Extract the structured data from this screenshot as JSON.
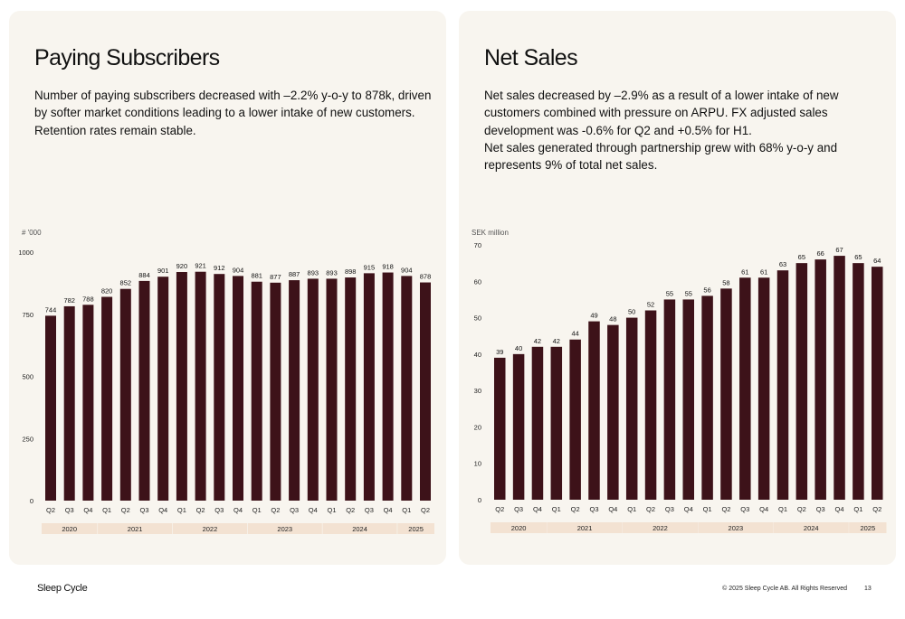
{
  "colors": {
    "bar": "#3d1219",
    "card_bg": "#f8f5ef",
    "year_band": "#f3e2d2",
    "text": "#111111"
  },
  "panels": [
    {
      "title": "Paying Subscribers",
      "paragraphs": [
        "Number of paying subscribers decreased with –2.2% y-o-y to 878k, driven by softer market conditions leading to a lower intake of new customers. Retention rates remain stable."
      ]
    },
    {
      "title": "Net Sales",
      "paragraphs": [
        "Net sales decreased by –2.9% as a result of a lower intake of new customers combined with pressure on ARPU. FX adjusted sales development was -0.6% for Q2 and +0.5% for H1.",
        "Net sales generated through partnership grew with 68% y-o-y and represents 9% of total net sales."
      ]
    }
  ],
  "chart_data": [
    {
      "type": "bar",
      "unit_label": "# '000",
      "title": "",
      "xlabel": "",
      "ylabel": "# '000",
      "ylim": [
        0,
        1000
      ],
      "yticks": [
        0,
        250,
        500,
        750,
        1000
      ],
      "yticks_labels": [
        "0",
        "250",
        "500",
        "750",
        "1000"
      ],
      "grid": false,
      "categories": [
        "Q2",
        "Q3",
        "Q4",
        "Q1",
        "Q2",
        "Q3",
        "Q4",
        "Q1",
        "Q2",
        "Q3",
        "Q4",
        "Q1",
        "Q2",
        "Q3",
        "Q4",
        "Q1",
        "Q2",
        "Q3",
        "Q4",
        "Q1",
        "Q2"
      ],
      "values": [
        744,
        782,
        788,
        820,
        852,
        884,
        901,
        920,
        921,
        912,
        904,
        881,
        877,
        887,
        893,
        893,
        898,
        915,
        918,
        904,
        878
      ],
      "data_labels": [
        "744",
        "782",
        "788",
        "820",
        "852",
        "884",
        "901",
        "920",
        "921",
        "912",
        "904",
        "881",
        "877",
        "887",
        "893",
        "893",
        "898",
        "915",
        "918",
        "904",
        "878"
      ],
      "years": [
        {
          "label": "2020",
          "count": 3
        },
        {
          "label": "2021",
          "count": 4
        },
        {
          "label": "2022",
          "count": 4
        },
        {
          "label": "2023",
          "count": 4
        },
        {
          "label": "2024",
          "count": 4
        },
        {
          "label": "2025",
          "count": 2
        }
      ]
    },
    {
      "type": "bar",
      "unit_label": "SEK million",
      "title": "",
      "xlabel": "",
      "ylabel": "SEK million",
      "ylim": [
        0,
        70
      ],
      "yticks": [
        0,
        10,
        20,
        30,
        40,
        50,
        60,
        70
      ],
      "yticks_labels": [
        "0",
        "10",
        "20",
        "30",
        "40",
        "50",
        "60",
        "70"
      ],
      "grid": false,
      "categories": [
        "Q2",
        "Q3",
        "Q4",
        "Q1",
        "Q2",
        "Q3",
        "Q4",
        "Q1",
        "Q2",
        "Q3",
        "Q4",
        "Q1",
        "Q2",
        "Q3",
        "Q4",
        "Q1",
        "Q2",
        "Q3",
        "Q4",
        "Q1",
        "Q2"
      ],
      "values": [
        39,
        40,
        42,
        42,
        44,
        49,
        48,
        50,
        52,
        55,
        55,
        56,
        58,
        61,
        61,
        63,
        65,
        66,
        67,
        65,
        64
      ],
      "data_labels": [
        "39",
        "40",
        "42",
        "42",
        "44",
        "49",
        "48",
        "50",
        "52",
        "55",
        "55",
        "56",
        "58",
        "61",
        "61",
        "63",
        "65",
        "66",
        "67",
        "65",
        "64"
      ],
      "years": [
        {
          "label": "2020",
          "count": 3
        },
        {
          "label": "2021",
          "count": 4
        },
        {
          "label": "2022",
          "count": 4
        },
        {
          "label": "2023",
          "count": 4
        },
        {
          "label": "2024",
          "count": 4
        },
        {
          "label": "2025",
          "count": 2
        }
      ]
    }
  ],
  "footer": {
    "brand": "Sleep Cycle",
    "copyright": "© 2025 Sleep Cycle AB. All Rights Reserved",
    "page_number": "13"
  }
}
